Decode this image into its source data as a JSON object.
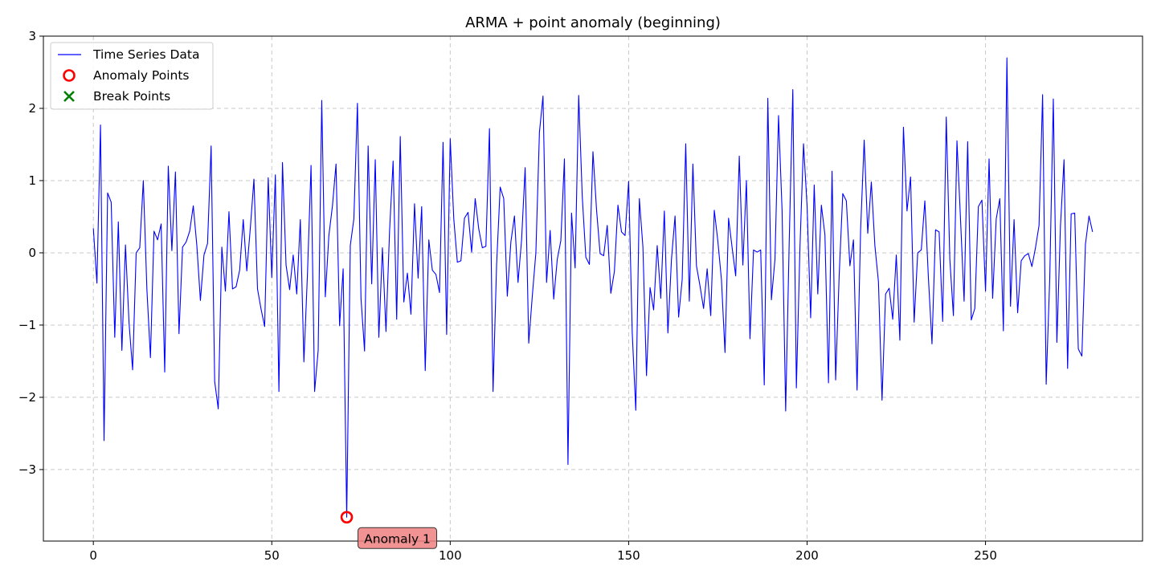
{
  "chart_data": {
    "type": "line",
    "title": "ARMA + point anomaly (beginning)",
    "xlabel": "",
    "ylabel": "",
    "xlim": [
      -14,
      294
    ],
    "ylim": [
      -3.99,
      3.0
    ],
    "xticks": [
      0,
      50,
      100,
      150,
      200,
      250
    ],
    "yticks": [
      -3,
      -2,
      -1,
      0,
      1,
      2,
      3
    ],
    "xtick_labels": [
      "0",
      "50",
      "100",
      "150",
      "200",
      "250"
    ],
    "ytick_labels": [
      "−3",
      "−2",
      "−1",
      "0",
      "1",
      "2",
      "3"
    ],
    "grid": true,
    "legend_position": "top-left",
    "legend": [
      {
        "label": "Time Series Data",
        "marker": "line",
        "color": "#0000ff"
      },
      {
        "label": "Anomaly Points",
        "marker": "circle",
        "color": "#ff0000"
      },
      {
        "label": "Break Points",
        "marker": "x",
        "color": "#008000"
      }
    ],
    "series": [
      {
        "name": "Time Series Data",
        "color": "#0000ff",
        "x_start": 0,
        "x_step": 1,
        "values": [
          0.34,
          -0.42,
          1.77,
          -2.6,
          0.83,
          0.7,
          -1.17,
          0.43,
          -1.35,
          0.11,
          -0.97,
          -1.62,
          0.0,
          0.07,
          1.0,
          -0.5,
          -1.45,
          0.3,
          0.18,
          0.4,
          -1.65,
          1.2,
          0.03,
          1.12,
          -1.12,
          0.08,
          0.15,
          0.3,
          0.65,
          0.1,
          -0.66,
          -0.03,
          0.13,
          1.48,
          -1.78,
          -2.16,
          0.08,
          -0.53,
          0.57,
          -0.5,
          -0.47,
          -0.24,
          0.46,
          -0.25,
          0.35,
          1.02,
          -0.5,
          -0.78,
          -1.02,
          1.04,
          -0.34,
          1.08,
          -1.92,
          1.25,
          -0.17,
          -0.51,
          -0.03,
          -0.57,
          0.46,
          -1.51,
          -0.29,
          1.21,
          -1.92,
          -1.35,
          2.11,
          -0.61,
          0.24,
          0.65,
          1.23,
          -1.01,
          -0.22,
          -3.66,
          0.1,
          0.47,
          2.07,
          -0.63,
          -1.36,
          1.48,
          -0.43,
          1.29,
          -1.17,
          0.07,
          -1.09,
          0.3,
          1.27,
          -0.92,
          1.61,
          -0.68,
          -0.28,
          -0.85,
          0.68,
          -0.35,
          0.64,
          -1.63,
          0.18,
          -0.24,
          -0.3,
          -0.55,
          1.53,
          -1.13,
          1.58,
          0.47,
          -0.13,
          -0.11,
          0.48,
          0.56,
          0.01,
          0.75,
          0.33,
          0.07,
          0.09,
          1.72,
          -1.92,
          -0.16,
          0.91,
          0.75,
          -0.6,
          0.15,
          0.51,
          -0.41,
          0.18,
          1.18,
          -1.25,
          -0.6,
          0.0,
          1.67,
          2.17,
          -0.41,
          0.31,
          -0.64,
          -0.09,
          0.17,
          1.3,
          -2.93,
          0.55,
          -0.21,
          2.18,
          0.78,
          -0.06,
          -0.16,
          1.4,
          0.6,
          -0.01,
          -0.04,
          0.38,
          -0.56,
          -0.26,
          0.66,
          0.29,
          0.24,
          0.99,
          -1.1,
          -2.18,
          0.75,
          0.08,
          -1.7,
          -0.48,
          -0.79,
          0.1,
          -0.63,
          0.58,
          -1.11,
          -0.09,
          0.51,
          -0.89,
          -0.37,
          1.51,
          -0.67,
          1.23,
          -0.18,
          -0.46,
          -0.77,
          -0.22,
          -0.87,
          0.59,
          0.16,
          -0.37,
          -1.38,
          0.48,
          0.07,
          -0.32,
          1.34,
          -0.17,
          1.0,
          -1.19,
          0.04,
          0.01,
          0.04,
          -1.83,
          2.14,
          -0.65,
          -0.09,
          1.9,
          0.58,
          -2.19,
          0.17,
          2.26,
          -1.87,
          0.07,
          1.51,
          0.65,
          -0.9,
          0.94,
          -0.57,
          0.66,
          0.25,
          -1.8,
          1.13,
          -1.76,
          -0.3,
          0.82,
          0.72,
          -0.18,
          0.18,
          -1.9,
          0.32,
          1.56,
          0.27,
          0.98,
          0.1,
          -0.4,
          -2.04,
          -0.57,
          -0.49,
          -0.92,
          -0.03,
          -1.21,
          1.74,
          0.58,
          1.05,
          -0.96,
          0.0,
          0.04,
          0.72,
          -0.35,
          -1.26,
          0.32,
          0.29,
          -0.95,
          1.88,
          -0.09,
          -0.87,
          1.55,
          0.46,
          -0.67,
          1.54,
          -0.93,
          -0.77,
          0.64,
          0.73,
          -0.53,
          1.3,
          -0.63,
          0.47,
          0.75,
          -1.08,
          2.7,
          -0.74,
          0.46,
          -0.83,
          -0.11,
          -0.04,
          -0.01,
          -0.19,
          0.07,
          0.38,
          2.19,
          -1.82,
          -0.35,
          2.13,
          -1.24,
          0.37,
          1.29,
          -1.6,
          0.54,
          0.55,
          -1.33,
          -1.43,
          0.12,
          0.51,
          0.29
        ]
      }
    ],
    "anomaly_points": [
      {
        "x": 71,
        "y": -3.66
      }
    ],
    "break_points": [],
    "annotations": [
      {
        "text": "Anomaly 1",
        "x": 71,
        "y": -3.66
      }
    ]
  }
}
